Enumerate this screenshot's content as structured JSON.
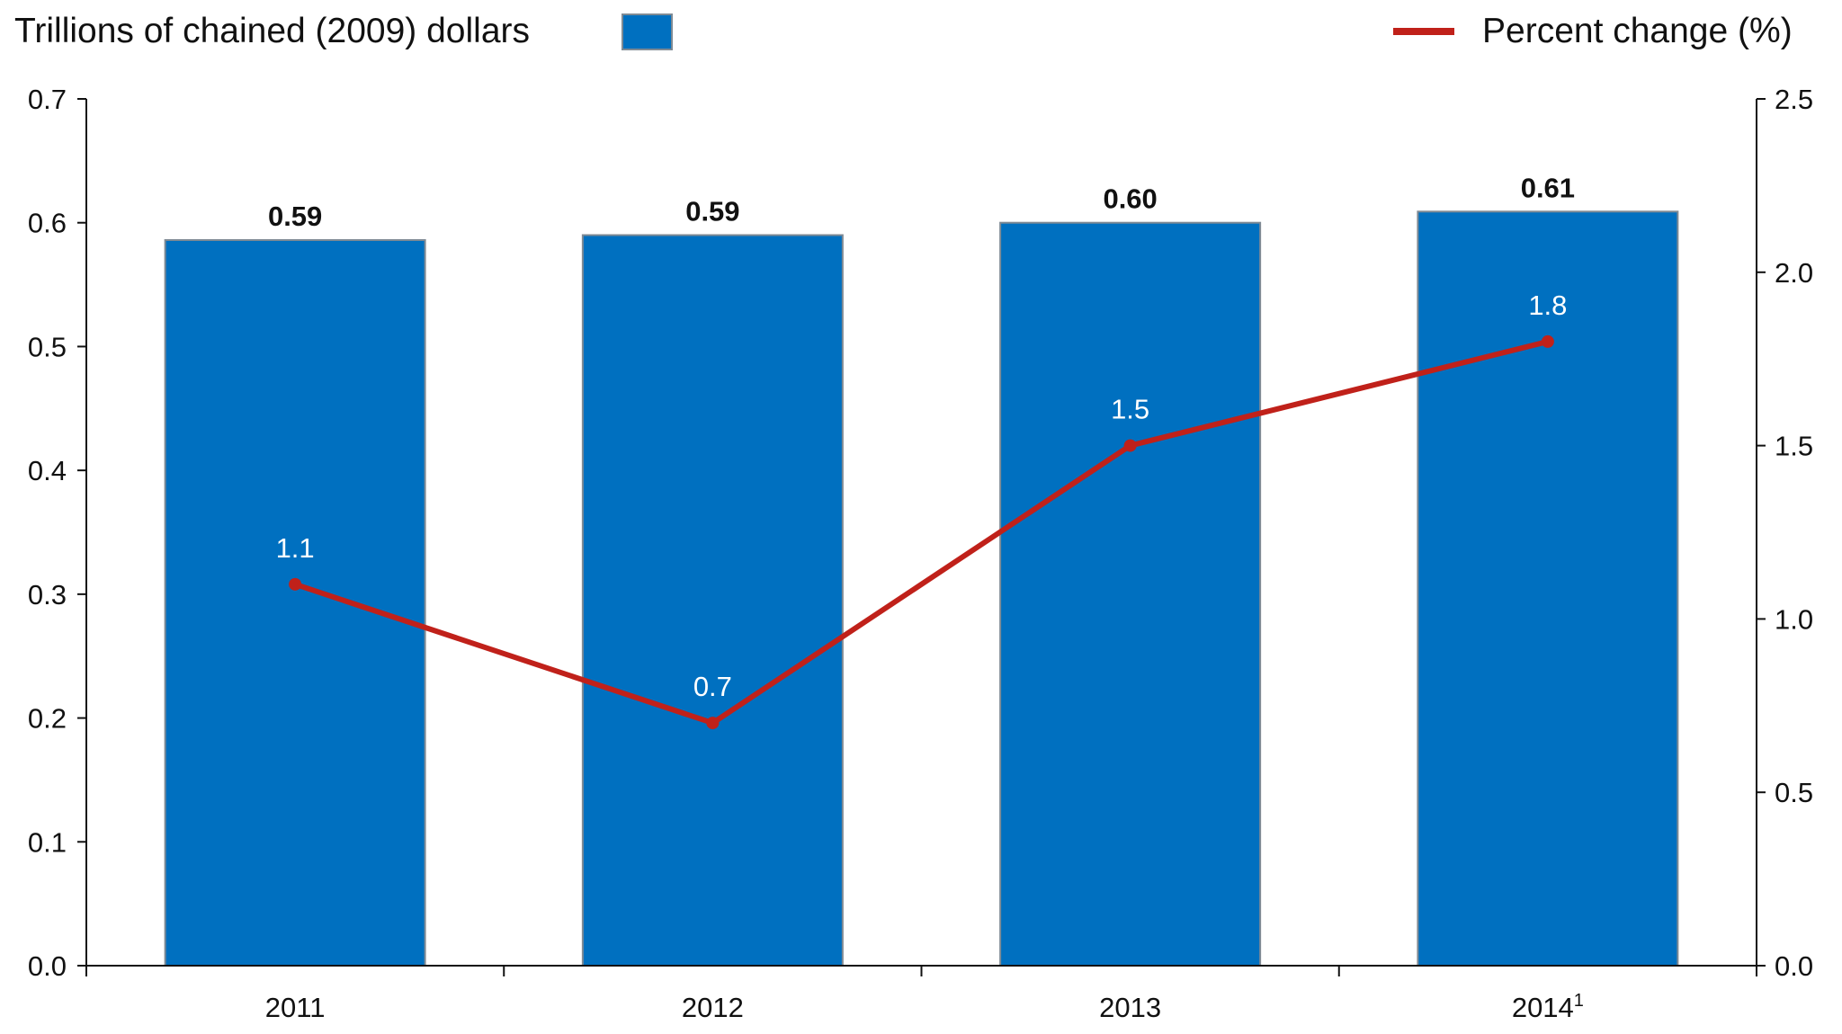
{
  "chart_data": {
    "type": "bar+line",
    "categories": [
      "2011",
      "2012",
      "2013",
      "2014"
    ],
    "category_superscripts": [
      "",
      "",
      "",
      "1"
    ],
    "series": [
      {
        "name": "Trillions of chained (2009) dollars",
        "type": "bar",
        "axis": "left",
        "values": [
          0.586,
          0.59,
          0.6,
          0.609
        ],
        "labels": [
          "0.59",
          "0.59",
          "0.60",
          "0.61"
        ],
        "color": "#0070C0"
      },
      {
        "name": "Percent change (%)",
        "type": "line",
        "axis": "right",
        "values": [
          1.1,
          0.7,
          1.5,
          1.8
        ],
        "labels": [
          "1.1",
          "0.7",
          "1.5",
          "1.8"
        ],
        "color": "#C0211A"
      }
    ],
    "left_axis": {
      "ylim": [
        0,
        0.7
      ],
      "ticks": [
        "0.0",
        "0.1",
        "0.2",
        "0.3",
        "0.4",
        "0.5",
        "0.6",
        "0.7"
      ]
    },
    "right_axis": {
      "ylim": [
        0,
        2.5
      ],
      "ticks": [
        "0.0",
        "0.5",
        "1.0",
        "1.5",
        "2.0",
        "2.5"
      ]
    },
    "legend": {
      "bar_label": "Trillions of chained (2009) dollars",
      "line_label": "Percent change (%)",
      "placement": "top"
    },
    "grid": false
  }
}
